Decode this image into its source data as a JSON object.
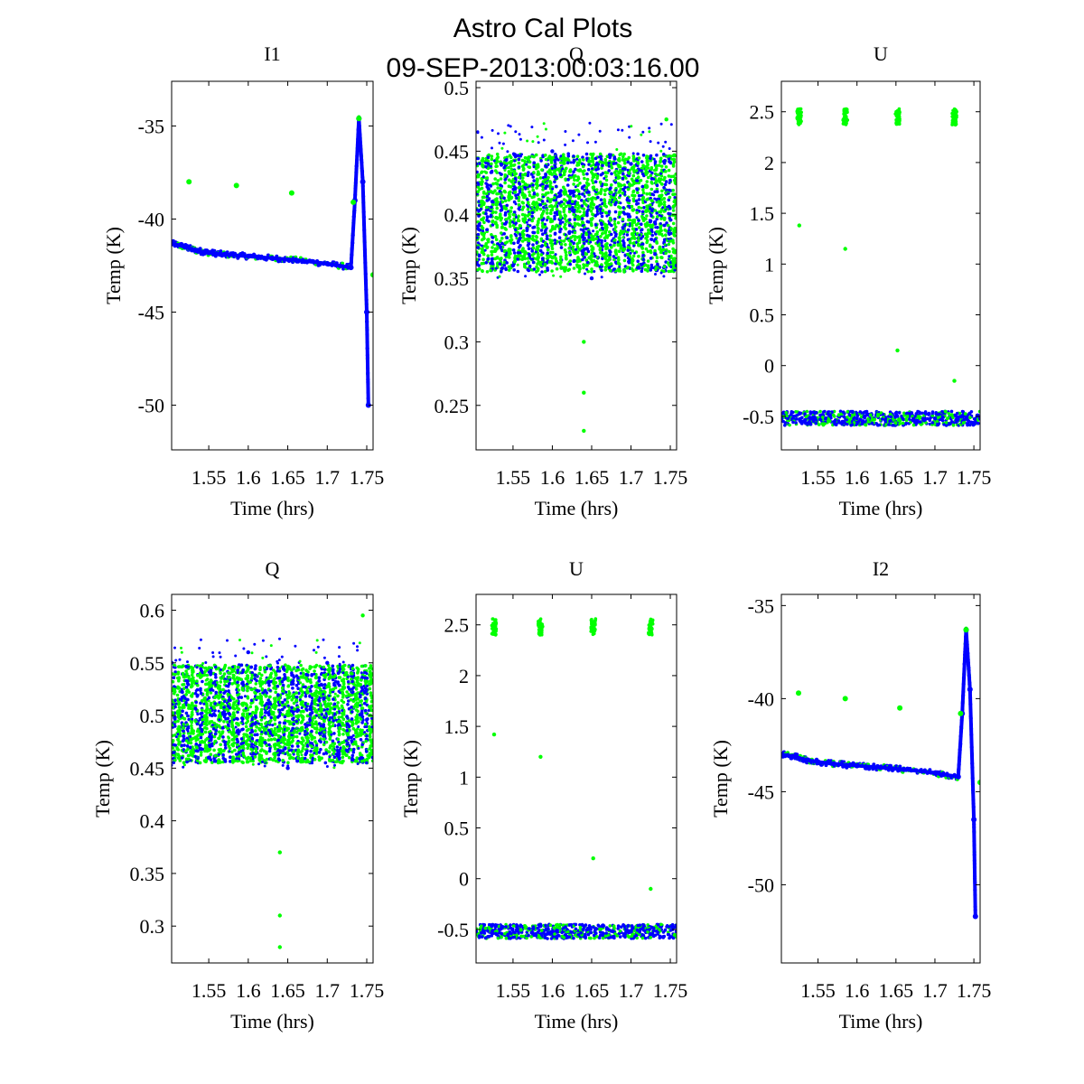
{
  "figure": {
    "title_line1": "Astro Cal Plots",
    "title_line2": "09-SEP-2013:00:03:16.00"
  },
  "colors": {
    "series_a": "#0000ff",
    "series_b": "#00ff00",
    "axes": "#000000"
  },
  "chart_data": [
    {
      "type": "scatter",
      "title": "I1",
      "xlabel": "Time (hrs)",
      "ylabel": "Temp (K)",
      "xlim": [
        1.503,
        1.758
      ],
      "ylim": [
        -52.4,
        -32.6
      ],
      "xticks": [
        1.55,
        1.6,
        1.65,
        1.7,
        1.75
      ],
      "xtick_labels": [
        "1.55",
        "1.6",
        "1.65",
        "1.7",
        "1.75"
      ],
      "yticks": [
        -35,
        -40,
        -45,
        -50
      ],
      "ytick_labels": [
        "-35",
        "-40",
        "-45",
        "-50"
      ],
      "shape": "temp",
      "series": [
        {
          "name": "",
          "color": "blue",
          "points": [
            [
              1.503,
              -41.3
            ],
            [
              1.52,
              -41.5
            ],
            [
              1.535,
              -41.7
            ],
            [
              1.55,
              -41.8
            ],
            [
              1.57,
              -41.9
            ],
            [
              1.6,
              -42.0
            ],
            [
              1.63,
              -42.1
            ],
            [
              1.66,
              -42.2
            ],
            [
              1.7,
              -42.4
            ],
            [
              1.73,
              -42.6
            ],
            [
              1.735,
              -39.0
            ],
            [
              1.74,
              -34.6
            ],
            [
              1.745,
              -38.0
            ],
            [
              1.75,
              -45.0
            ],
            [
              1.752,
              -50.0
            ]
          ]
        },
        {
          "name": "",
          "color": "green",
          "points": [
            [
              1.525,
              -38.0
            ],
            [
              1.585,
              -38.2
            ],
            [
              1.655,
              -38.6
            ],
            [
              1.733,
              -39.1
            ],
            [
              1.74,
              -34.6
            ],
            [
              1.758,
              -43.0
            ]
          ]
        }
      ]
    },
    {
      "type": "scatter",
      "title": "Q",
      "xlabel": "Time (hrs)",
      "ylabel": "Temp (K)",
      "xlim": [
        1.503,
        1.758
      ],
      "ylim": [
        0.215,
        0.505
      ],
      "xticks": [
        1.55,
        1.6,
        1.65,
        1.7,
        1.75
      ],
      "xtick_labels": [
        "1.55",
        "1.6",
        "1.65",
        "1.7",
        "1.75"
      ],
      "yticks": [
        0.5,
        0.45,
        0.4,
        0.35,
        0.3,
        0.25
      ],
      "ytick_labels": [
        "0.5",
        "0.45",
        "0.4",
        "0.35",
        "0.3",
        "0.25"
      ],
      "shape": "band",
      "series": [
        {
          "name": "",
          "color": "blue",
          "points": [
            [
              1.503,
              0.44
            ],
            [
              1.55,
              0.36
            ],
            [
              1.6,
              0.45
            ],
            [
              1.65,
              0.35
            ],
            [
              1.7,
              0.44
            ],
            [
              1.758,
              0.36
            ]
          ]
        },
        {
          "name": "",
          "color": "green",
          "points": [
            [
              1.64,
              0.3
            ],
            [
              1.64,
              0.26
            ],
            [
              1.64,
              0.23
            ],
            [
              1.745,
              0.475
            ]
          ]
        }
      ]
    },
    {
      "type": "scatter",
      "title": "U",
      "xlabel": "Time (hrs)",
      "ylabel": "Temp (K)",
      "xlim": [
        1.503,
        1.758
      ],
      "ylim": [
        -0.83,
        2.8
      ],
      "xticks": [
        1.55,
        1.6,
        1.65,
        1.7,
        1.75
      ],
      "xtick_labels": [
        "1.55",
        "1.6",
        "1.65",
        "1.7",
        "1.75"
      ],
      "yticks": [
        2.5,
        2,
        1.5,
        1,
        0.5,
        0,
        -0.5
      ],
      "ytick_labels": [
        "2.5",
        "2",
        "1.5",
        "1",
        "0.5",
        "0",
        "-0.5"
      ],
      "shape": "u",
      "series": [
        {
          "name": "",
          "color": "blue",
          "points": [
            [
              1.503,
              -0.52
            ],
            [
              1.6,
              -0.52
            ],
            [
              1.7,
              -0.52
            ],
            [
              1.758,
              -0.52
            ]
          ]
        },
        {
          "name": "",
          "color": "green",
          "points": [
            [
              1.526,
              2.45
            ],
            [
              1.585,
              2.45
            ],
            [
              1.652,
              2.45
            ],
            [
              1.725,
              2.45
            ],
            [
              1.526,
              1.38
            ],
            [
              1.585,
              1.15
            ],
            [
              1.652,
              0.15
            ],
            [
              1.725,
              -0.15
            ]
          ]
        }
      ]
    },
    {
      "type": "scatter",
      "title": "Q",
      "xlabel": "Time (hrs)",
      "ylabel": "Temp (K)",
      "xlim": [
        1.503,
        1.758
      ],
      "ylim": [
        0.265,
        0.615
      ],
      "xticks": [
        1.55,
        1.6,
        1.65,
        1.7,
        1.75
      ],
      "xtick_labels": [
        "1.55",
        "1.6",
        "1.65",
        "1.7",
        "1.75"
      ],
      "yticks": [
        0.6,
        0.55,
        0.5,
        0.45,
        0.4,
        0.35,
        0.3
      ],
      "ytick_labels": [
        "0.6",
        "0.55",
        "0.5",
        "0.45",
        "0.4",
        "0.35",
        "0.3"
      ],
      "shape": "band",
      "series": [
        {
          "name": "",
          "color": "blue",
          "points": [
            [
              1.503,
              0.55
            ],
            [
              1.55,
              0.46
            ],
            [
              1.6,
              0.56
            ],
            [
              1.65,
              0.45
            ],
            [
              1.7,
              0.55
            ],
            [
              1.758,
              0.46
            ]
          ]
        },
        {
          "name": "",
          "color": "green",
          "points": [
            [
              1.64,
              0.37
            ],
            [
              1.64,
              0.31
            ],
            [
              1.64,
              0.28
            ],
            [
              1.745,
              0.595
            ]
          ]
        }
      ]
    },
    {
      "type": "scatter",
      "title": "U",
      "xlabel": "Time (hrs)",
      "ylabel": "Temp (K)",
      "xlim": [
        1.503,
        1.758
      ],
      "ylim": [
        -0.83,
        2.8
      ],
      "xticks": [
        1.55,
        1.6,
        1.65,
        1.7,
        1.75
      ],
      "xtick_labels": [
        "1.55",
        "1.6",
        "1.65",
        "1.7",
        "1.75"
      ],
      "yticks": [
        2.5,
        2,
        1.5,
        1,
        0.5,
        0,
        -0.5
      ],
      "ytick_labels": [
        "2.5",
        "2",
        "1.5",
        "1",
        "0.5",
        "0",
        "-0.5"
      ],
      "shape": "u",
      "series": [
        {
          "name": "",
          "color": "blue",
          "points": [
            [
              1.503,
              -0.52
            ],
            [
              1.6,
              -0.52
            ],
            [
              1.7,
              -0.52
            ],
            [
              1.758,
              -0.52
            ]
          ]
        },
        {
          "name": "",
          "color": "green",
          "points": [
            [
              1.526,
              2.48
            ],
            [
              1.585,
              2.48
            ],
            [
              1.652,
              2.48
            ],
            [
              1.725,
              2.48
            ],
            [
              1.526,
              1.42
            ],
            [
              1.585,
              1.2
            ],
            [
              1.652,
              0.2
            ],
            [
              1.725,
              -0.1
            ]
          ]
        }
      ]
    },
    {
      "type": "scatter",
      "title": "I2",
      "xlabel": "Time (hrs)",
      "ylabel": "Temp (K)",
      "xlim": [
        1.503,
        1.758
      ],
      "ylim": [
        -54.2,
        -34.4
      ],
      "xticks": [
        1.55,
        1.6,
        1.65,
        1.7,
        1.75
      ],
      "xtick_labels": [
        "1.55",
        "1.6",
        "1.65",
        "1.7",
        "1.75"
      ],
      "yticks": [
        -35,
        -40,
        -45,
        -50
      ],
      "ytick_labels": [
        "-35",
        "-40",
        "-45",
        "-50"
      ],
      "shape": "temp",
      "series": [
        {
          "name": "",
          "color": "blue",
          "points": [
            [
              1.503,
              -43.0
            ],
            [
              1.52,
              -43.1
            ],
            [
              1.535,
              -43.3
            ],
            [
              1.55,
              -43.4
            ],
            [
              1.57,
              -43.5
            ],
            [
              1.6,
              -43.6
            ],
            [
              1.63,
              -43.7
            ],
            [
              1.66,
              -43.8
            ],
            [
              1.7,
              -44.0
            ],
            [
              1.73,
              -44.2
            ],
            [
              1.735,
              -40.8
            ],
            [
              1.74,
              -36.3
            ],
            [
              1.745,
              -39.5
            ],
            [
              1.75,
              -46.5
            ],
            [
              1.752,
              -51.7
            ]
          ]
        },
        {
          "name": "",
          "color": "green",
          "points": [
            [
              1.525,
              -39.7
            ],
            [
              1.585,
              -40.0
            ],
            [
              1.655,
              -40.5
            ],
            [
              1.733,
              -40.8
            ],
            [
              1.74,
              -36.3
            ],
            [
              1.758,
              -44.5
            ]
          ]
        }
      ]
    }
  ]
}
